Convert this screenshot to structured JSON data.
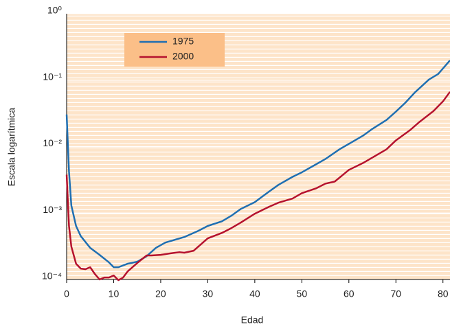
{
  "chart_data": {
    "type": "line",
    "xlabel": "Edad",
    "ylabel": "Escala logarítmica",
    "ylog": true,
    "grid": true,
    "legend": "upper left",
    "xlim": [
      0,
      81.5
    ],
    "xticks": [
      0,
      10,
      20,
      30,
      40,
      50,
      60,
      70,
      80
    ],
    "ylim": [
      0.0001,
      1
    ],
    "yticks": [
      {
        "value": 1,
        "label": "10⁰"
      },
      {
        "value": 0.1,
        "label": "10⁻¹"
      },
      {
        "value": 0.01,
        "label": "10⁻²"
      },
      {
        "value": 0.001,
        "label": "10⁻³"
      },
      {
        "value": 0.0001,
        "label": "10⁻⁴"
      }
    ],
    "series": [
      {
        "name": "1975",
        "color": "#1f6fb2",
        "x": [
          0,
          0.5,
          1,
          2,
          3,
          5,
          7,
          9,
          10,
          11,
          13,
          15,
          17,
          19,
          21,
          25,
          28,
          30,
          33,
          35,
          37,
          40,
          43,
          45,
          48,
          50,
          53,
          55,
          58,
          60,
          63,
          65,
          68,
          70,
          72,
          74,
          77,
          79,
          81.5
        ],
        "values": [
          0.0305,
          0.00425,
          0.0013,
          0.00064,
          0.00045,
          0.0003,
          0.000235,
          0.000181,
          0.000153,
          0.000153,
          0.000173,
          0.000185,
          0.000224,
          0.0003,
          0.00036,
          0.000435,
          0.00054,
          0.00064,
          0.00075,
          0.00091,
          0.00115,
          0.00146,
          0.0021,
          0.00265,
          0.0035,
          0.0041,
          0.0054,
          0.0065,
          0.0091,
          0.011,
          0.0146,
          0.0185,
          0.0252,
          0.0336,
          0.0457,
          0.065,
          0.102,
          0.124,
          0.199
        ]
      },
      {
        "name": "2000",
        "color": "#b5122e",
        "x": [
          0,
          0.5,
          1,
          2,
          3,
          4,
          5,
          6,
          7,
          8,
          9,
          10,
          11,
          12,
          13,
          15,
          17,
          18,
          20,
          22,
          24,
          25,
          27,
          28,
          30,
          33,
          35,
          37,
          40,
          43,
          45,
          48,
          50,
          53,
          55,
          57,
          60,
          63,
          65,
          68,
          70,
          73,
          75,
          78,
          80,
          81.5
        ],
        "values": [
          0.00378,
          0.00064,
          0.000313,
          0.000173,
          0.000146,
          0.000143,
          0.000153,
          0.000121,
          0.0001,
          0.000107,
          0.000107,
          0.000115,
          9.77e-05,
          0.000107,
          0.000133,
          0.000177,
          0.00023,
          0.00023,
          0.000235,
          0.000247,
          0.000258,
          0.000253,
          0.000271,
          0.000313,
          0.000416,
          0.000502,
          0.000593,
          0.000718,
          0.000977,
          0.00124,
          0.00143,
          0.00165,
          0.00199,
          0.00235,
          0.00277,
          0.00298,
          0.00446,
          0.00566,
          0.00684,
          0.0091,
          0.0124,
          0.0177,
          0.0235,
          0.0344,
          0.0479,
          0.0668
        ]
      }
    ]
  }
}
